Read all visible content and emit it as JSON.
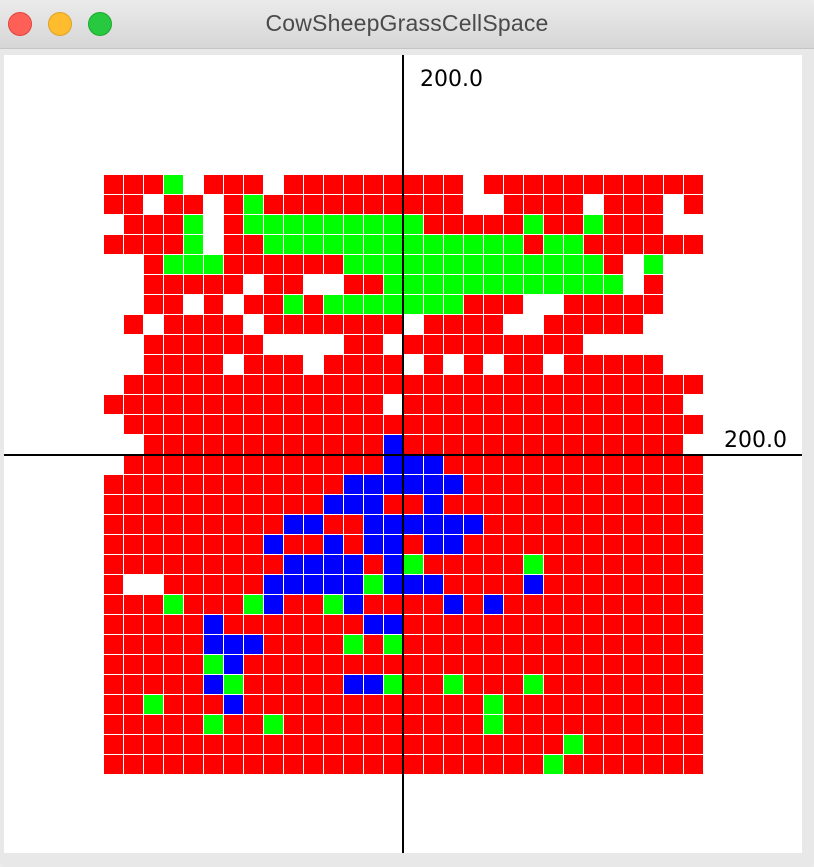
{
  "window": {
    "title": "CowSheepGrassCellSpace",
    "controls": [
      "close",
      "minimize",
      "maximize"
    ]
  },
  "canvas": {
    "y_axis_label": "200.0",
    "x_axis_label": "200.0",
    "colors": {
      "background": "#ffffff",
      "axis": "#000000",
      "grid_line": "#ffffff",
      "R": "#ff0000",
      "G": "#00ff00",
      "B": "#0000ff"
    },
    "grid_legend": {
      "R": "red cell",
      "G": "green cell",
      "B": "blue cell",
      ".": "empty cell"
    },
    "grid_columns": 30,
    "grid_rows": 30,
    "grid": [
      "RRRG.RRR.RRRRRRRRR.RRRRRRRRRRR",
      "RR.RR.RGRRRRRRRRRR..RRRR.RRR.R",
      ".RRRG.RGGGGGGGGGRRRRRGRRGRRR..",
      "RRRRG.RRGGGGGGGGGGGGGRGGRRRRRR",
      "..RGGGRRRRRRGGGGGGGGGGGGGR.G..",
      "..RRRRR.RR..RRGGGGGGGGGGGG.R..",
      "..RR.R.RRGRGGGGGGGRRR..RRRRR..",
      ".R.RRRR.RRRRRRR.RRRR..RRRRR...",
      "..RRRRRR....RR.RRRRRRRRR......",
      "..RRRR.RRR.RRRR.R.R.RR.RRRRR..",
      ".RRRRRRRRRRRRRRRRRRRRRRRRRRRRR",
      "RRRRRRRRRRRRRR.RRRRRRRRRRRRRR.",
      ".RRRRRRRRRRRRRRRRRRRRRRRRRRRRR",
      "..RRRRRRRRRRRRBRRRRRRRRRRRRRR.",
      ".RRRRRRRRRRRRRBBBRRRRRRRRRRRRR",
      "RRRRRRRRRRRRBBBBBBRRRRRRRRRRRR",
      "RRRRRRRRRRRBBBRRBRRRRRRRRRRRRR",
      "RRRRRRRRRBBRRBBBBBBRRRRRRRRRRR",
      "RRRRRRRRBRRBRBBRBBRRRRRRRRRRRR",
      "RRRRRRRRRBBBBRBGRRRRRGRRRRRRRR",
      "R..RRRRRBBBBBGBBBRRRRBRRRRRRRR",
      "RRRGRRRGBRRGBRRRRBRBRRRRRRRRRR",
      "RRRRRBRRRRRRRBBRRRRRRRRRRRRRRR",
      "RRRRRBBBRRRRGRGRRRRRRRRRRRRRRR",
      "RRRRRGBRRRRRRRRRRRRRRRRRRRRRRR",
      "RRRRRBGRRRRRBBGRRGRRRGRRRRRRRR",
      "RRGRRRBRRRRRRRRRRRRGRRRRRRRRRR",
      "RRRRRGRRGRRRRRRRRRRGRRRRRRRRRR",
      "RRRRRRRRRRRRRRRRRRRRRRRGRRRRRR",
      "RRRRRRRRRRRRRRRRRRRRRRGRRRRRRR"
    ]
  }
}
